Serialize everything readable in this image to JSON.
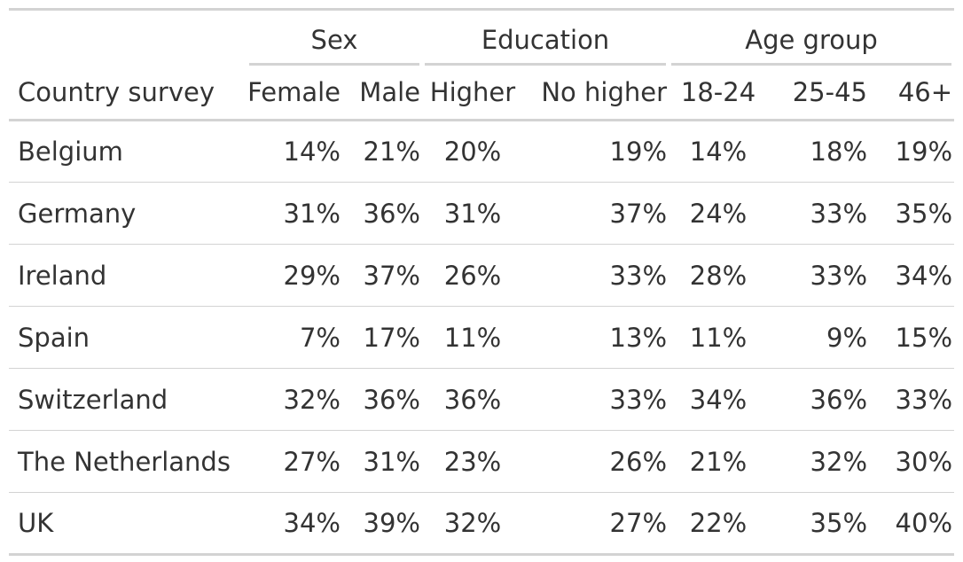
{
  "table": {
    "stub_header": "Country survey",
    "spanners": {
      "sex": "Sex",
      "education": "Education",
      "age_group": "Age group"
    },
    "columns": [
      "Female",
      "Male",
      "Higher",
      "No higher",
      "18-24",
      "25-45",
      "46+"
    ],
    "rows": [
      {
        "country": "Belgium",
        "values": [
          "14%",
          "21%",
          "20%",
          "19%",
          "14%",
          "18%",
          "19%"
        ]
      },
      {
        "country": "Germany",
        "values": [
          "31%",
          "36%",
          "31%",
          "37%",
          "24%",
          "33%",
          "35%"
        ]
      },
      {
        "country": "Ireland",
        "values": [
          "29%",
          "37%",
          "26%",
          "33%",
          "28%",
          "33%",
          "34%"
        ]
      },
      {
        "country": "Spain",
        "values": [
          "7%",
          "17%",
          "11%",
          "13%",
          "11%",
          "9%",
          "15%"
        ]
      },
      {
        "country": "Switzerland",
        "values": [
          "32%",
          "36%",
          "36%",
          "33%",
          "34%",
          "36%",
          "33%"
        ]
      },
      {
        "country": "The Netherlands",
        "values": [
          "27%",
          "31%",
          "23%",
          "26%",
          "21%",
          "32%",
          "30%"
        ]
      },
      {
        "country": "UK",
        "values": [
          "34%",
          "39%",
          "32%",
          "27%",
          "22%",
          "35%",
          "40%"
        ]
      }
    ]
  },
  "colors": {
    "text": "#333333",
    "rule": "#d3d3d3",
    "background": "#ffffff"
  }
}
